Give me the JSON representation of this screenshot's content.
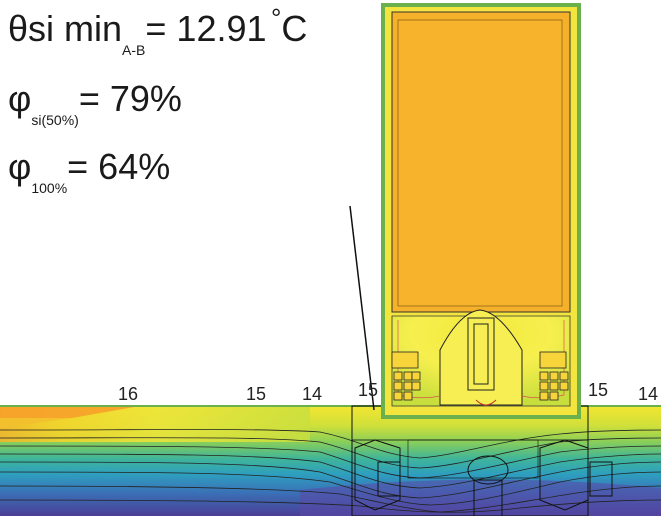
{
  "results": {
    "theta_symbol": "θ",
    "theta_label": "si min",
    "theta_sub": "A-B",
    "theta_value": "= 12.91",
    "theta_degree": "°",
    "theta_unit": "C",
    "phi_symbol": "φ",
    "phi50_sub": "si(50%)",
    "phi50_value": "= 79%",
    "phi100_sub": "100%",
    "phi100_value": "= 64%"
  },
  "isotherm_labels": [
    "16",
    "15",
    "14",
    "15",
    "15",
    "14"
  ],
  "colors": {
    "frame_outline": "#6ab04c",
    "glazing_fill": "#f7b52c",
    "wall_warm": "#f5dc1e",
    "wall_cool": "#3b3b8f",
    "isotherm_line": "#333333"
  }
}
